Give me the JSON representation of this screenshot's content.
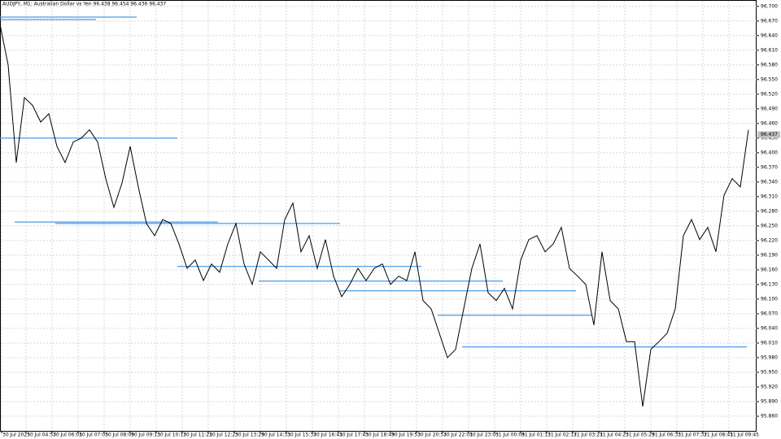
{
  "chart_data": {
    "type": "line",
    "title": "AUDJPY, M1: Australian Dollar vs Yen 96.438 96.454 96.436 96.437",
    "color": "#000000",
    "values": [
      96.663,
      96.58,
      96.38,
      96.513,
      96.497,
      96.463,
      96.48,
      96.413,
      96.38,
      96.422,
      96.43,
      96.447,
      96.422,
      96.347,
      96.288,
      96.338,
      96.413,
      96.33,
      96.255,
      96.23,
      96.263,
      96.255,
      96.213,
      96.163,
      96.18,
      96.138,
      96.172,
      96.155,
      96.213,
      96.255,
      96.172,
      96.13,
      96.197,
      96.18,
      96.163,
      96.263,
      96.297,
      96.197,
      96.23,
      96.163,
      96.222,
      96.147,
      96.105,
      96.13,
      96.163,
      96.138,
      96.163,
      96.172,
      96.13,
      96.147,
      96.138,
      96.197,
      96.097,
      96.08,
      96.03,
      95.98,
      95.997,
      96.08,
      96.163,
      96.213,
      96.113,
      96.097,
      96.122,
      96.08,
      96.18,
      96.222,
      96.23,
      96.197,
      96.213,
      96.247,
      96.163,
      96.147,
      96.13,
      96.047,
      96.197,
      96.097,
      96.08,
      96.013,
      96.013,
      95.88,
      95.997,
      96.013,
      96.03,
      96.08,
      96.23,
      96.263,
      96.222,
      96.247,
      96.197,
      96.313,
      96.347,
      96.33,
      96.447
    ],
    "xlim": [
      0,
      92
    ],
    "xticks": [
      {
        "value": 0.2,
        "label": "30 Jul 2025"
      },
      {
        "value": 3.2,
        "label": "30 Jul 04:57"
      },
      {
        "value": 6.4,
        "label": "30 Jul 06:01"
      },
      {
        "value": 9.6,
        "label": "30 Jul 07:05"
      },
      {
        "value": 12.8,
        "label": "30 Jul 08:09"
      },
      {
        "value": 16,
        "label": "30 Jul 09:13"
      },
      {
        "value": 19.2,
        "label": "30 Jul 10:17"
      },
      {
        "value": 22.4,
        "label": "30 Jul 11:21"
      },
      {
        "value": 25.6,
        "label": "30 Jul 12:25"
      },
      {
        "value": 28.8,
        "label": "30 Jul 13:29"
      },
      {
        "value": 32,
        "label": "30 Jul 14:33"
      },
      {
        "value": 35.2,
        "label": "30 Jul 15:37"
      },
      {
        "value": 38.4,
        "label": "30 Jul 16:41"
      },
      {
        "value": 41.6,
        "label": "30 Jul 17:45"
      },
      {
        "value": 44.8,
        "label": "30 Jul 18:49"
      },
      {
        "value": 48,
        "label": "30 Jul 19:53"
      },
      {
        "value": 51.2,
        "label": "30 Jul 20:57"
      },
      {
        "value": 54.4,
        "label": "30 Jul 22:01"
      },
      {
        "value": 57.6,
        "label": "30 Jul 23:05"
      },
      {
        "value": 60.8,
        "label": "31 Jul 00:09"
      },
      {
        "value": 64,
        "label": "31 Jul 01:13"
      },
      {
        "value": 67.2,
        "label": "31 Jul 02:17"
      },
      {
        "value": 70.4,
        "label": "31 Jul 03:21"
      },
      {
        "value": 73.6,
        "label": "31 Jul 04:25"
      },
      {
        "value": 76.8,
        "label": "31 Jul 05:29"
      },
      {
        "value": 80,
        "label": "31 Jul 06:33"
      },
      {
        "value": 83.2,
        "label": "31 Jul 07:37"
      },
      {
        "value": 86.4,
        "label": "31 Jul 08:41"
      },
      {
        "value": 89.6,
        "label": "31 Jul 09:45"
      }
    ],
    "ylim": [
      95.83,
      96.713
    ],
    "yticks": [
      {
        "value": 96.7,
        "label": "96.700"
      },
      {
        "value": 96.67,
        "label": "96.670"
      },
      {
        "value": 96.64,
        "label": "96.640"
      },
      {
        "value": 96.61,
        "label": "96.610"
      },
      {
        "value": 96.58,
        "label": "96.580"
      },
      {
        "value": 96.55,
        "label": "96.550"
      },
      {
        "value": 96.52,
        "label": "96.520"
      },
      {
        "value": 96.49,
        "label": "96.490"
      },
      {
        "value": 96.46,
        "label": "96.460"
      },
      {
        "value": 96.43,
        "label": "96.430"
      },
      {
        "value": 96.4,
        "label": "96.400"
      },
      {
        "value": 96.37,
        "label": "96.370"
      },
      {
        "value": 96.34,
        "label": "96.340"
      },
      {
        "value": 96.31,
        "label": "96.310"
      },
      {
        "value": 96.28,
        "label": "96.280"
      },
      {
        "value": 96.25,
        "label": "96.250"
      },
      {
        "value": 96.22,
        "label": "96.220"
      },
      {
        "value": 96.19,
        "label": "96.190"
      },
      {
        "value": 96.16,
        "label": "96.160"
      },
      {
        "value": 96.13,
        "label": "96.130"
      },
      {
        "value": 96.1,
        "label": "96.100"
      },
      {
        "value": 96.07,
        "label": "96.070"
      },
      {
        "value": 96.04,
        "label": "96.040"
      },
      {
        "value": 96.01,
        "label": "96.010"
      },
      {
        "value": 95.98,
        "label": "95.980"
      },
      {
        "value": 95.95,
        "label": "95.950"
      },
      {
        "value": 95.92,
        "label": "95.920"
      },
      {
        "value": 95.89,
        "label": "95.890"
      },
      {
        "value": 95.86,
        "label": "95.860"
      }
    ],
    "grid": true,
    "levels_color": "#4a9be8",
    "levels": [
      {
        "value": 96.678,
        "start": 0,
        "end": 16.8
      },
      {
        "value": 96.673,
        "start": 0,
        "end": 11.8
      },
      {
        "value": 96.43,
        "start": 0,
        "end": 21.8
      },
      {
        "value": 96.258,
        "start": 1.8,
        "end": 26.8
      },
      {
        "value": 96.255,
        "start": 6.8,
        "end": 41.8
      },
      {
        "value": 96.167,
        "start": 21.8,
        "end": 51.8
      },
      {
        "value": 96.137,
        "start": 31.8,
        "end": 61.8
      },
      {
        "value": 96.117,
        "start": 41.8,
        "end": 70.8
      },
      {
        "value": 96.067,
        "start": 53.8,
        "end": 72.8
      },
      {
        "value": 96.002,
        "start": 56.8,
        "end": 91.8
      }
    ],
    "current_price": {
      "value": 96.437,
      "label": "96.437"
    }
  }
}
